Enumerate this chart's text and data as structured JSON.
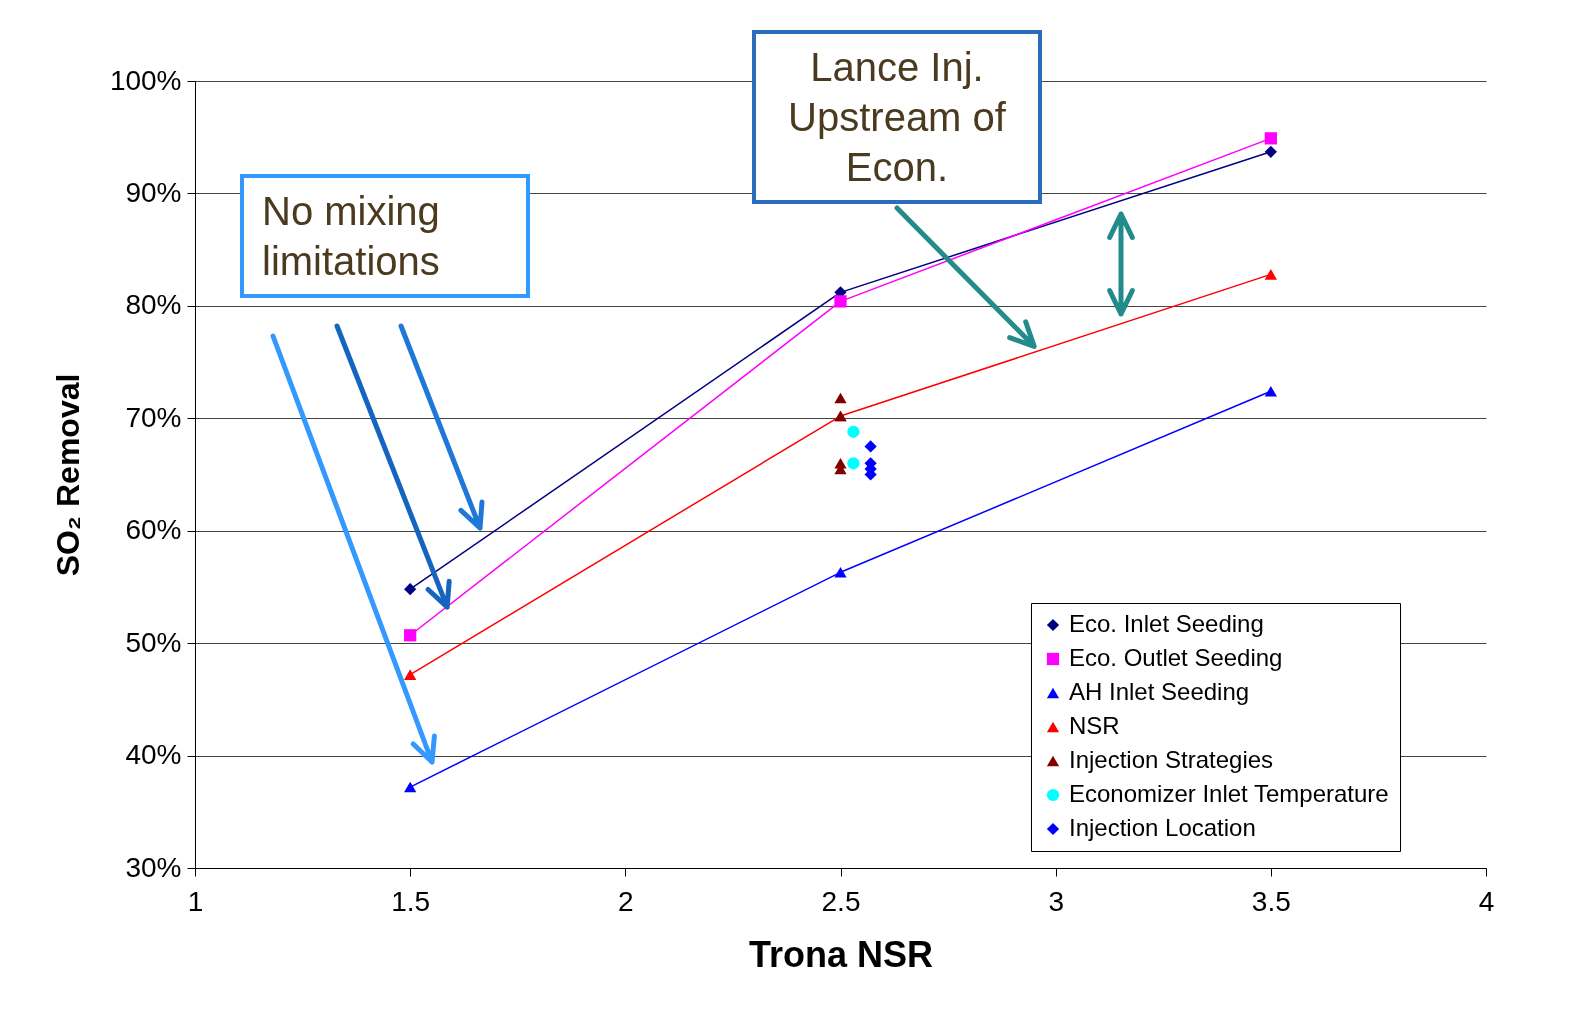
{
  "chart_data": {
    "type": "line",
    "xlabel": "Trona NSR",
    "ylabel": "SO₂ Removal",
    "xlim": [
      1,
      4
    ],
    "xticks": [
      1,
      1.5,
      2,
      2.5,
      3,
      3.5,
      4
    ],
    "ylim": [
      30,
      100
    ],
    "yticks": [
      {
        "value": 30,
        "label": "30%"
      },
      {
        "value": 40,
        "label": "40%"
      },
      {
        "value": 50,
        "label": "50%"
      },
      {
        "value": 60,
        "label": "60%"
      },
      {
        "value": 70,
        "label": "70%"
      },
      {
        "value": 80,
        "label": "80%"
      },
      {
        "value": 90,
        "label": "90%"
      },
      {
        "value": 100,
        "label": "100%"
      }
    ],
    "grid": "y",
    "legend": "bottom right",
    "annotations": [
      {
        "text": "No mixing limitations",
        "x": 1.586,
        "y": 53.2
      },
      {
        "text": "Lance Inj. Upstream of Econ.",
        "x": 2.95,
        "y": 76.4
      }
    ],
    "series": [
      {
        "name": "Eco.  Inlet Seeding",
        "type": "line",
        "marker": "diamond",
        "color": "#000080",
        "x": [
          1.5,
          2.5,
          3.5
        ],
        "values": [
          54.8,
          81.2,
          93.7
        ]
      },
      {
        "name": "Eco. Outlet Seeding",
        "type": "line",
        "marker": "square",
        "color": "#ff00ff",
        "x": [
          1.5,
          2.5,
          3.5
        ],
        "values": [
          50.7,
          80.4,
          94.9
        ]
      },
      {
        "name": "AH Inlet Seeding",
        "type": "line",
        "marker": "triangle",
        "color": "#0000ff",
        "x": [
          1.5,
          2.5,
          3.5
        ],
        "values": [
          37.2,
          56.3,
          72.4
        ]
      },
      {
        "name": "NSR",
        "type": "line",
        "marker": "triangle",
        "color": "#ff0000",
        "x": [
          1.5,
          2.5,
          3.5
        ],
        "values": [
          47.2,
          70.2,
          82.8
        ]
      },
      {
        "name": "Injection Strategies",
        "type": "scatter",
        "marker": "triangle",
        "color": "#800000",
        "x": [
          2.5,
          2.5,
          2.5,
          2.5
        ],
        "values": [
          71.8,
          70.2,
          66.0,
          65.5
        ]
      },
      {
        "name": "Economizer Inlet Temperature",
        "type": "scatter",
        "marker": "circle",
        "color": "#00ffff",
        "x": [
          2.53,
          2.53
        ],
        "values": [
          68.8,
          66.0
        ]
      },
      {
        "name": "Injection Location",
        "type": "scatter",
        "marker": "diamond",
        "color": "#0000ff",
        "x": [
          2.57,
          2.57,
          2.57,
          2.57
        ],
        "values": [
          67.5,
          66.0,
          65.5,
          65.0
        ]
      }
    ]
  }
}
